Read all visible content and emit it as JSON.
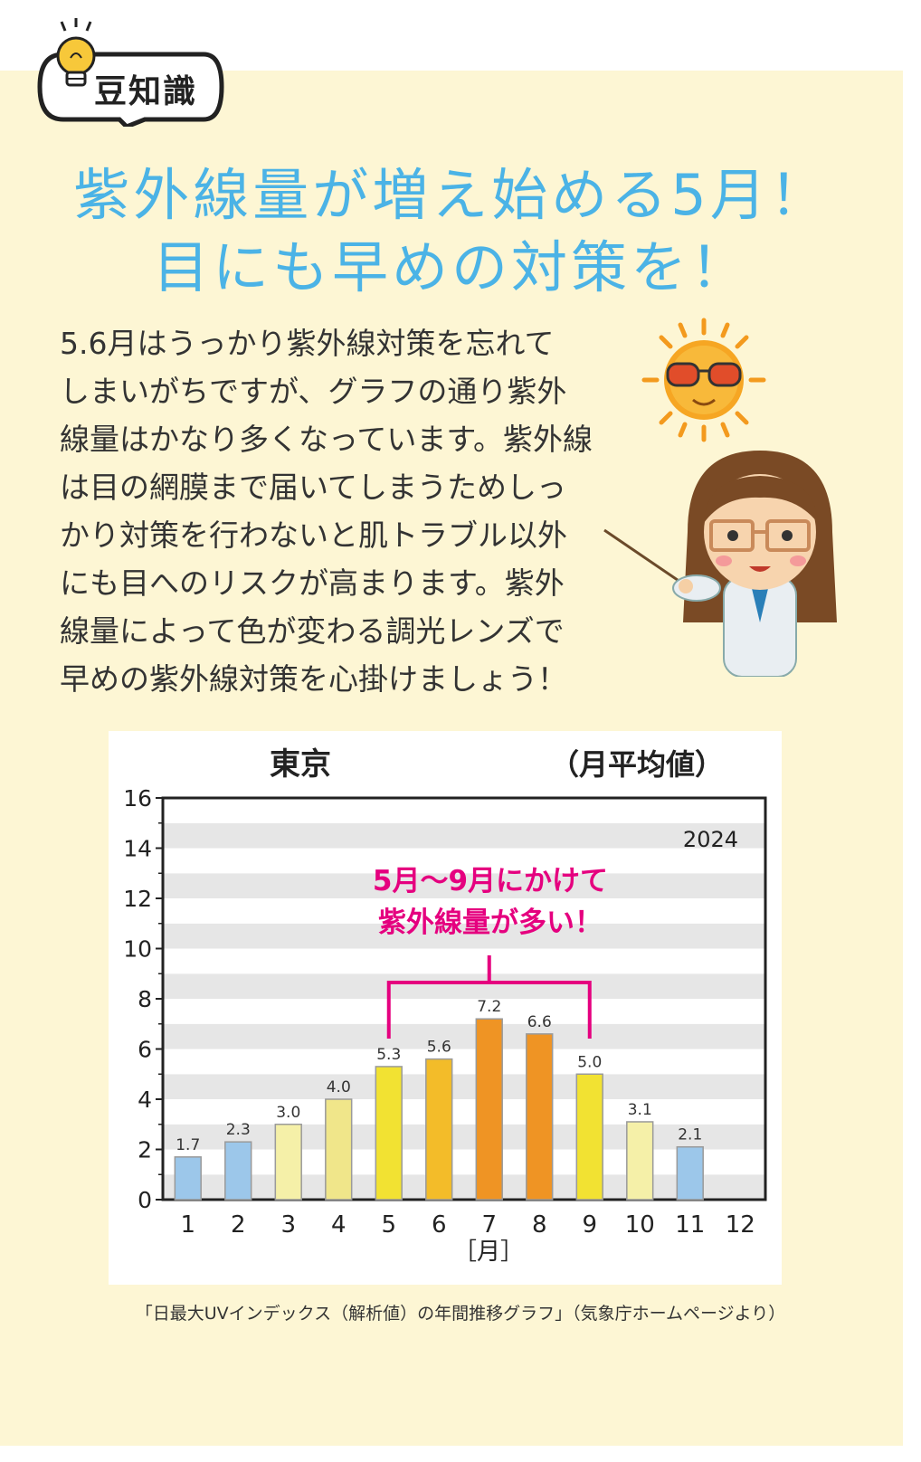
{
  "badge": {
    "label": "豆知識",
    "icon": "lightbulb-icon"
  },
  "headline": {
    "line1": "紫外線量が増え始める5月！",
    "line2": "目にも早めの対策を！"
  },
  "body_lines": [
    "5.6月はうっかり紫外線対策を忘れて",
    "しまいがちですが、グラフの通り紫外",
    "線量はかなり多くなっています。紫外線",
    "は目の網膜まで届いてしまうためしっ",
    "かり対策を行わないと肌トラブル以外",
    "にも目へのリスクが高まります。紫外",
    "線量によって色が変わる調光レンズで",
    "早めの紫外線対策を心掛けましょう！"
  ],
  "source": "「日最大UVインデックス（解析値）の年間推移グラフ」（気象庁ホームページより）",
  "colors": {
    "headline": "#4bb3e6",
    "panel": "#fdf6d4",
    "annotation": "#e5007f"
  },
  "chart_data": {
    "type": "bar",
    "title": "東京",
    "subtitle": "（月平均値）",
    "year": "2024",
    "xlabel": "［月］",
    "ylabel": "",
    "categories": [
      "1",
      "2",
      "3",
      "4",
      "5",
      "6",
      "7",
      "8",
      "9",
      "10",
      "11",
      "12"
    ],
    "values": [
      1.7,
      2.3,
      3.0,
      4.0,
      5.3,
      5.6,
      7.2,
      6.6,
      5.0,
      3.1,
      2.1,
      null
    ],
    "value_labels": [
      "1.7",
      "2.3",
      "3.0",
      "4.0",
      "5.3",
      "5.6",
      "7.2",
      "6.6",
      "5.0",
      "3.1",
      "2.1",
      ""
    ],
    "bar_colors": [
      "#9cc7ea",
      "#9cc7ea",
      "#f5f0a8",
      "#f0e68a",
      "#f2e232",
      "#f3bc29",
      "#ef9424",
      "#ef9424",
      "#f2e232",
      "#f5f0a8",
      "#9cc7ea",
      ""
    ],
    "ylim": [
      0,
      16
    ],
    "yticks": [
      "0",
      "2",
      "4",
      "6",
      "8",
      "10",
      "12",
      "14",
      "16"
    ],
    "grid": "horizontal stripes",
    "annotation": {
      "line1": "5月〜9月にかけて",
      "line2": "紫外線量が多い！",
      "from": "5",
      "to": "9"
    }
  }
}
